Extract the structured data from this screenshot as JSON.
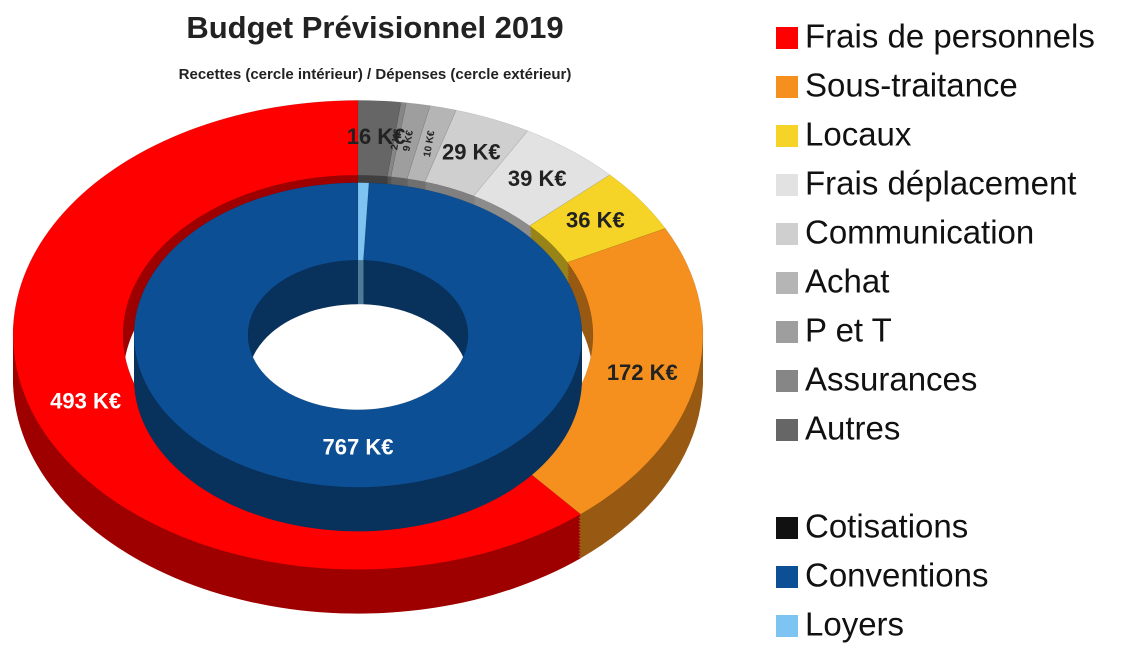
{
  "chart_data": {
    "type": "donut3d",
    "title": "Budget Prévisionnel 2019",
    "subtitle": "Recettes (cercle intérieur) / Dépenses (cercle extérieur)",
    "rings": [
      {
        "series": [
          {
            "name": "Frais de personnels",
            "color": "#ff0000",
            "value": 493,
            "value_label": "493 K€"
          },
          {
            "name": "Sous-traitance",
            "color": "#f5901e",
            "value": 172,
            "value_label": "172 K€"
          },
          {
            "name": "Locaux",
            "color": "#f5d327",
            "value": 36,
            "value_label": "36 K€"
          },
          {
            "name": "Frais déplacement",
            "color": "#e2e2e2",
            "value": 39,
            "value_label": "39 K€"
          },
          {
            "name": "Communication",
            "color": "#cfcfcf",
            "value": 29,
            "value_label": "29 K€"
          },
          {
            "name": "Achat",
            "color": "#b5b5b5",
            "value": 10,
            "value_label": "10 K€"
          },
          {
            "name": "P et T",
            "color": "#9e9e9e",
            "value": 9,
            "value_label": "9 K€"
          },
          {
            "name": "Assurances",
            "color": "#868686",
            "value": 2,
            "value_label": "2 K€"
          },
          {
            "name": "Autres",
            "color": "#666666",
            "value": 16,
            "value_label": "16 K€"
          }
        ]
      },
      {
        "series": [
          {
            "name": "Cotisations",
            "color": "#111111",
            "value": 0,
            "value_label": null
          },
          {
            "name": "Conventions",
            "color": "#0d4f94",
            "value": 767,
            "value_label": "767 K€"
          },
          {
            "name": "Loyers",
            "color": "#7ec4f2",
            "value": 6,
            "value_label": null
          }
        ]
      }
    ]
  }
}
